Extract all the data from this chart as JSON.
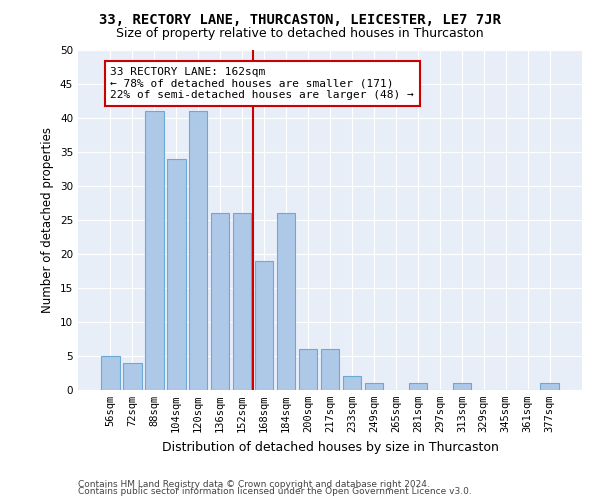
{
  "title": "33, RECTORY LANE, THURCASTON, LEICESTER, LE7 7JR",
  "subtitle": "Size of property relative to detached houses in Thurcaston",
  "xlabel": "Distribution of detached houses by size in Thurcaston",
  "ylabel": "Number of detached properties",
  "categories": [
    "56sqm",
    "72sqm",
    "88sqm",
    "104sqm",
    "120sqm",
    "136sqm",
    "152sqm",
    "168sqm",
    "184sqm",
    "200sqm",
    "217sqm",
    "233sqm",
    "249sqm",
    "265sqm",
    "281sqm",
    "297sqm",
    "313sqm",
    "329sqm",
    "345sqm",
    "361sqm",
    "377sqm"
  ],
  "values": [
    5,
    4,
    41,
    34,
    41,
    26,
    26,
    19,
    26,
    6,
    6,
    2,
    1,
    0,
    1,
    0,
    1,
    0,
    0,
    0,
    1
  ],
  "bar_color": "#aec8e8",
  "bar_edge_color": "#6aaad4",
  "vline_x_index": 7,
  "vline_color": "#cc0000",
  "annotation_text": "33 RECTORY LANE: 162sqm\n← 78% of detached houses are smaller (171)\n22% of semi-detached houses are larger (48) →",
  "annotation_box_color": "#ffffff",
  "annotation_box_edge": "#cc0000",
  "ylim": [
    0,
    50
  ],
  "yticks": [
    0,
    5,
    10,
    15,
    20,
    25,
    30,
    35,
    40,
    45,
    50
  ],
  "footer1": "Contains HM Land Registry data © Crown copyright and database right 2024.",
  "footer2": "Contains public sector information licensed under the Open Government Licence v3.0.",
  "bg_color": "#e8eef8",
  "fig_bg_color": "#ffffff",
  "title_fontsize": 10,
  "subtitle_fontsize": 9,
  "xlabel_fontsize": 9,
  "ylabel_fontsize": 8.5,
  "tick_fontsize": 7.5,
  "annotation_fontsize": 8,
  "footer_fontsize": 6.5
}
